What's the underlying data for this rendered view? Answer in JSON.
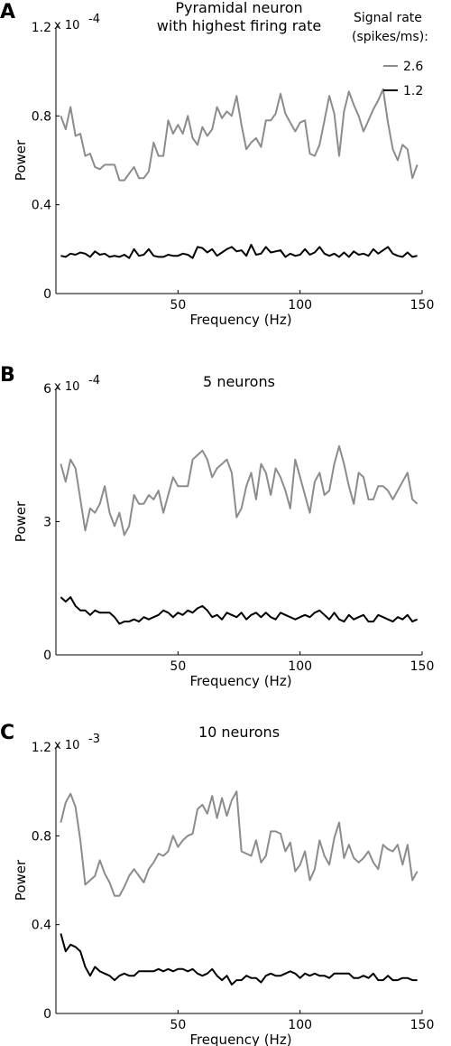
{
  "legend": {
    "title_line1": "Signal rate",
    "title_line2": "(spikes/ms):",
    "entries": [
      {
        "label": "2.6",
        "color": "#8c8c8c"
      },
      {
        "label": "1.2",
        "color": "#000000"
      }
    ]
  },
  "chart_data": [
    {
      "type": "line",
      "panel_letter": "A",
      "title_lines": [
        "Pyramidal neuron",
        "with highest firing rate"
      ],
      "xlabel": "Frequency (Hz)",
      "ylabel": "Power",
      "y_exponent_prefix": "x 10",
      "y_exponent_power": "-4",
      "xlim": [
        0,
        150
      ],
      "ylim": [
        0,
        1.2
      ],
      "xticks": [
        50,
        100,
        150
      ],
      "xtick_labels": [
        "50",
        "100",
        "150"
      ],
      "yticks": [
        0,
        0.4,
        0.8,
        1.2
      ],
      "ytick_labels": [
        "0",
        "0.4",
        "0.8",
        "1.2"
      ],
      "legend": "top-right",
      "grid": false,
      "x_start": 2,
      "x_step": 2,
      "series": [
        {
          "name": "2.6",
          "color": "#8c8c8c",
          "values": [
            0.8,
            0.74,
            0.84,
            0.71,
            0.72,
            0.62,
            0.63,
            0.57,
            0.56,
            0.58,
            0.58,
            0.58,
            0.51,
            0.51,
            0.54,
            0.57,
            0.52,
            0.52,
            0.55,
            0.68,
            0.62,
            0.62,
            0.78,
            0.72,
            0.76,
            0.72,
            0.8,
            0.7,
            0.67,
            0.75,
            0.71,
            0.74,
            0.84,
            0.79,
            0.82,
            0.8,
            0.89,
            0.76,
            0.65,
            0.68,
            0.7,
            0.66,
            0.78,
            0.78,
            0.81,
            0.9,
            0.81,
            0.77,
            0.73,
            0.77,
            0.78,
            0.63,
            0.62,
            0.67,
            0.78,
            0.89,
            0.81,
            0.62,
            0.82,
            0.91,
            0.85,
            0.8,
            0.73,
            0.78,
            0.83,
            0.87,
            0.92,
            0.77,
            0.65,
            0.6,
            0.67,
            0.65,
            0.52,
            0.58
          ]
        },
        {
          "name": "1.2",
          "color": "#000000",
          "values": [
            0.17,
            0.165,
            0.18,
            0.175,
            0.185,
            0.18,
            0.165,
            0.19,
            0.175,
            0.18,
            0.165,
            0.17,
            0.165,
            0.175,
            0.16,
            0.2,
            0.17,
            0.175,
            0.2,
            0.17,
            0.165,
            0.165,
            0.175,
            0.17,
            0.17,
            0.18,
            0.175,
            0.16,
            0.21,
            0.205,
            0.185,
            0.2,
            0.17,
            0.185,
            0.2,
            0.21,
            0.19,
            0.195,
            0.17,
            0.22,
            0.175,
            0.18,
            0.21,
            0.185,
            0.19,
            0.195,
            0.165,
            0.18,
            0.17,
            0.175,
            0.2,
            0.175,
            0.185,
            0.21,
            0.18,
            0.17,
            0.18,
            0.165,
            0.185,
            0.165,
            0.19,
            0.175,
            0.18,
            0.17,
            0.2,
            0.18,
            0.195,
            0.21,
            0.18,
            0.17,
            0.165,
            0.185,
            0.165,
            0.17
          ]
        }
      ]
    },
    {
      "type": "line",
      "panel_letter": "B",
      "title_lines": [
        "5 neurons"
      ],
      "xlabel": "Frequency (Hz)",
      "ylabel": "Power",
      "y_exponent_prefix": "x 10",
      "y_exponent_power": "-4",
      "xlim": [
        0,
        150
      ],
      "ylim": [
        0,
        6
      ],
      "xticks": [
        50,
        100,
        150
      ],
      "xtick_labels": [
        "50",
        "100",
        "150"
      ],
      "yticks": [
        0,
        3,
        6
      ],
      "ytick_labels": [
        "0",
        "3",
        "6"
      ],
      "legend": "none",
      "grid": false,
      "x_start": 2,
      "x_step": 2,
      "series": [
        {
          "name": "2.6",
          "color": "#8c8c8c",
          "values": [
            4.3,
            3.9,
            4.4,
            4.2,
            3.5,
            2.8,
            3.3,
            3.2,
            3.4,
            3.8,
            3.2,
            2.9,
            3.2,
            2.7,
            2.9,
            3.6,
            3.4,
            3.4,
            3.6,
            3.5,
            3.7,
            3.2,
            3.6,
            4.0,
            3.8,
            3.8,
            3.8,
            4.4,
            4.5,
            4.6,
            4.4,
            4.0,
            4.2,
            4.3,
            4.4,
            4.1,
            3.1,
            3.3,
            3.8,
            4.1,
            3.5,
            4.3,
            4.1,
            3.6,
            4.2,
            4.0,
            3.7,
            3.3,
            4.4,
            4.0,
            3.6,
            3.2,
            3.9,
            4.1,
            3.6,
            3.7,
            4.3,
            4.7,
            4.3,
            3.8,
            3.4,
            4.1,
            4.0,
            3.5,
            3.5,
            3.8,
            3.8,
            3.7,
            3.5,
            3.7,
            3.9,
            4.1,
            3.5,
            3.4
          ]
        },
        {
          "name": "1.2",
          "color": "#000000",
          "values": [
            1.3,
            1.2,
            1.3,
            1.1,
            1.0,
            1.0,
            0.9,
            1.0,
            0.95,
            0.95,
            0.95,
            0.85,
            0.7,
            0.75,
            0.75,
            0.8,
            0.75,
            0.85,
            0.8,
            0.85,
            0.9,
            1.0,
            0.95,
            0.85,
            0.95,
            0.9,
            1.0,
            0.95,
            1.05,
            1.1,
            1.0,
            0.85,
            0.9,
            0.8,
            0.95,
            0.9,
            0.85,
            0.95,
            0.8,
            0.9,
            0.95,
            0.85,
            0.95,
            0.85,
            0.8,
            0.95,
            0.9,
            0.85,
            0.8,
            0.85,
            0.9,
            0.85,
            0.95,
            1.0,
            0.9,
            0.8,
            0.95,
            0.8,
            0.75,
            0.9,
            0.8,
            0.85,
            0.9,
            0.75,
            0.75,
            0.9,
            0.85,
            0.8,
            0.75,
            0.85,
            0.8,
            0.9,
            0.75,
            0.8
          ]
        }
      ]
    },
    {
      "type": "line",
      "panel_letter": "C",
      "title_lines": [
        "10 neurons"
      ],
      "xlabel": "Frequency (Hz)",
      "ylabel": "Power",
      "y_exponent_prefix": "x 10",
      "y_exponent_power": "-3",
      "xlim": [
        0,
        150
      ],
      "ylim": [
        0,
        1.2
      ],
      "xticks": [
        50,
        100,
        150
      ],
      "xtick_labels": [
        "50",
        "100",
        "150"
      ],
      "yticks": [
        0,
        0.4,
        0.8,
        1.2
      ],
      "ytick_labels": [
        "0",
        "0.4",
        "0.8",
        "1.2"
      ],
      "legend": "none",
      "grid": false,
      "x_start": 2,
      "x_step": 2,
      "series": [
        {
          "name": "2.6",
          "color": "#8c8c8c",
          "values": [
            0.86,
            0.95,
            0.99,
            0.93,
            0.78,
            0.58,
            0.6,
            0.62,
            0.69,
            0.63,
            0.59,
            0.53,
            0.53,
            0.57,
            0.62,
            0.65,
            0.62,
            0.59,
            0.65,
            0.68,
            0.72,
            0.71,
            0.73,
            0.8,
            0.75,
            0.78,
            0.8,
            0.81,
            0.92,
            0.94,
            0.9,
            0.98,
            0.88,
            0.97,
            0.89,
            0.96,
            1.0,
            0.73,
            0.72,
            0.71,
            0.78,
            0.68,
            0.71,
            0.82,
            0.82,
            0.81,
            0.73,
            0.77,
            0.64,
            0.67,
            0.73,
            0.6,
            0.65,
            0.78,
            0.71,
            0.67,
            0.79,
            0.86,
            0.7,
            0.76,
            0.7,
            0.68,
            0.7,
            0.73,
            0.68,
            0.65,
            0.76,
            0.74,
            0.73,
            0.76,
            0.67,
            0.76,
            0.6,
            0.64
          ]
        },
        {
          "name": "1.2",
          "color": "#000000",
          "values": [
            0.36,
            0.28,
            0.31,
            0.3,
            0.28,
            0.21,
            0.17,
            0.21,
            0.19,
            0.18,
            0.17,
            0.15,
            0.17,
            0.18,
            0.17,
            0.17,
            0.19,
            0.19,
            0.19,
            0.19,
            0.2,
            0.19,
            0.2,
            0.19,
            0.2,
            0.2,
            0.19,
            0.2,
            0.18,
            0.17,
            0.18,
            0.2,
            0.17,
            0.15,
            0.17,
            0.13,
            0.15,
            0.15,
            0.17,
            0.16,
            0.16,
            0.14,
            0.17,
            0.18,
            0.17,
            0.17,
            0.18,
            0.19,
            0.18,
            0.16,
            0.18,
            0.17,
            0.18,
            0.17,
            0.17,
            0.16,
            0.18,
            0.18,
            0.18,
            0.18,
            0.16,
            0.16,
            0.17,
            0.16,
            0.18,
            0.15,
            0.15,
            0.17,
            0.15,
            0.15,
            0.16,
            0.16,
            0.15,
            0.15
          ]
        }
      ]
    }
  ]
}
